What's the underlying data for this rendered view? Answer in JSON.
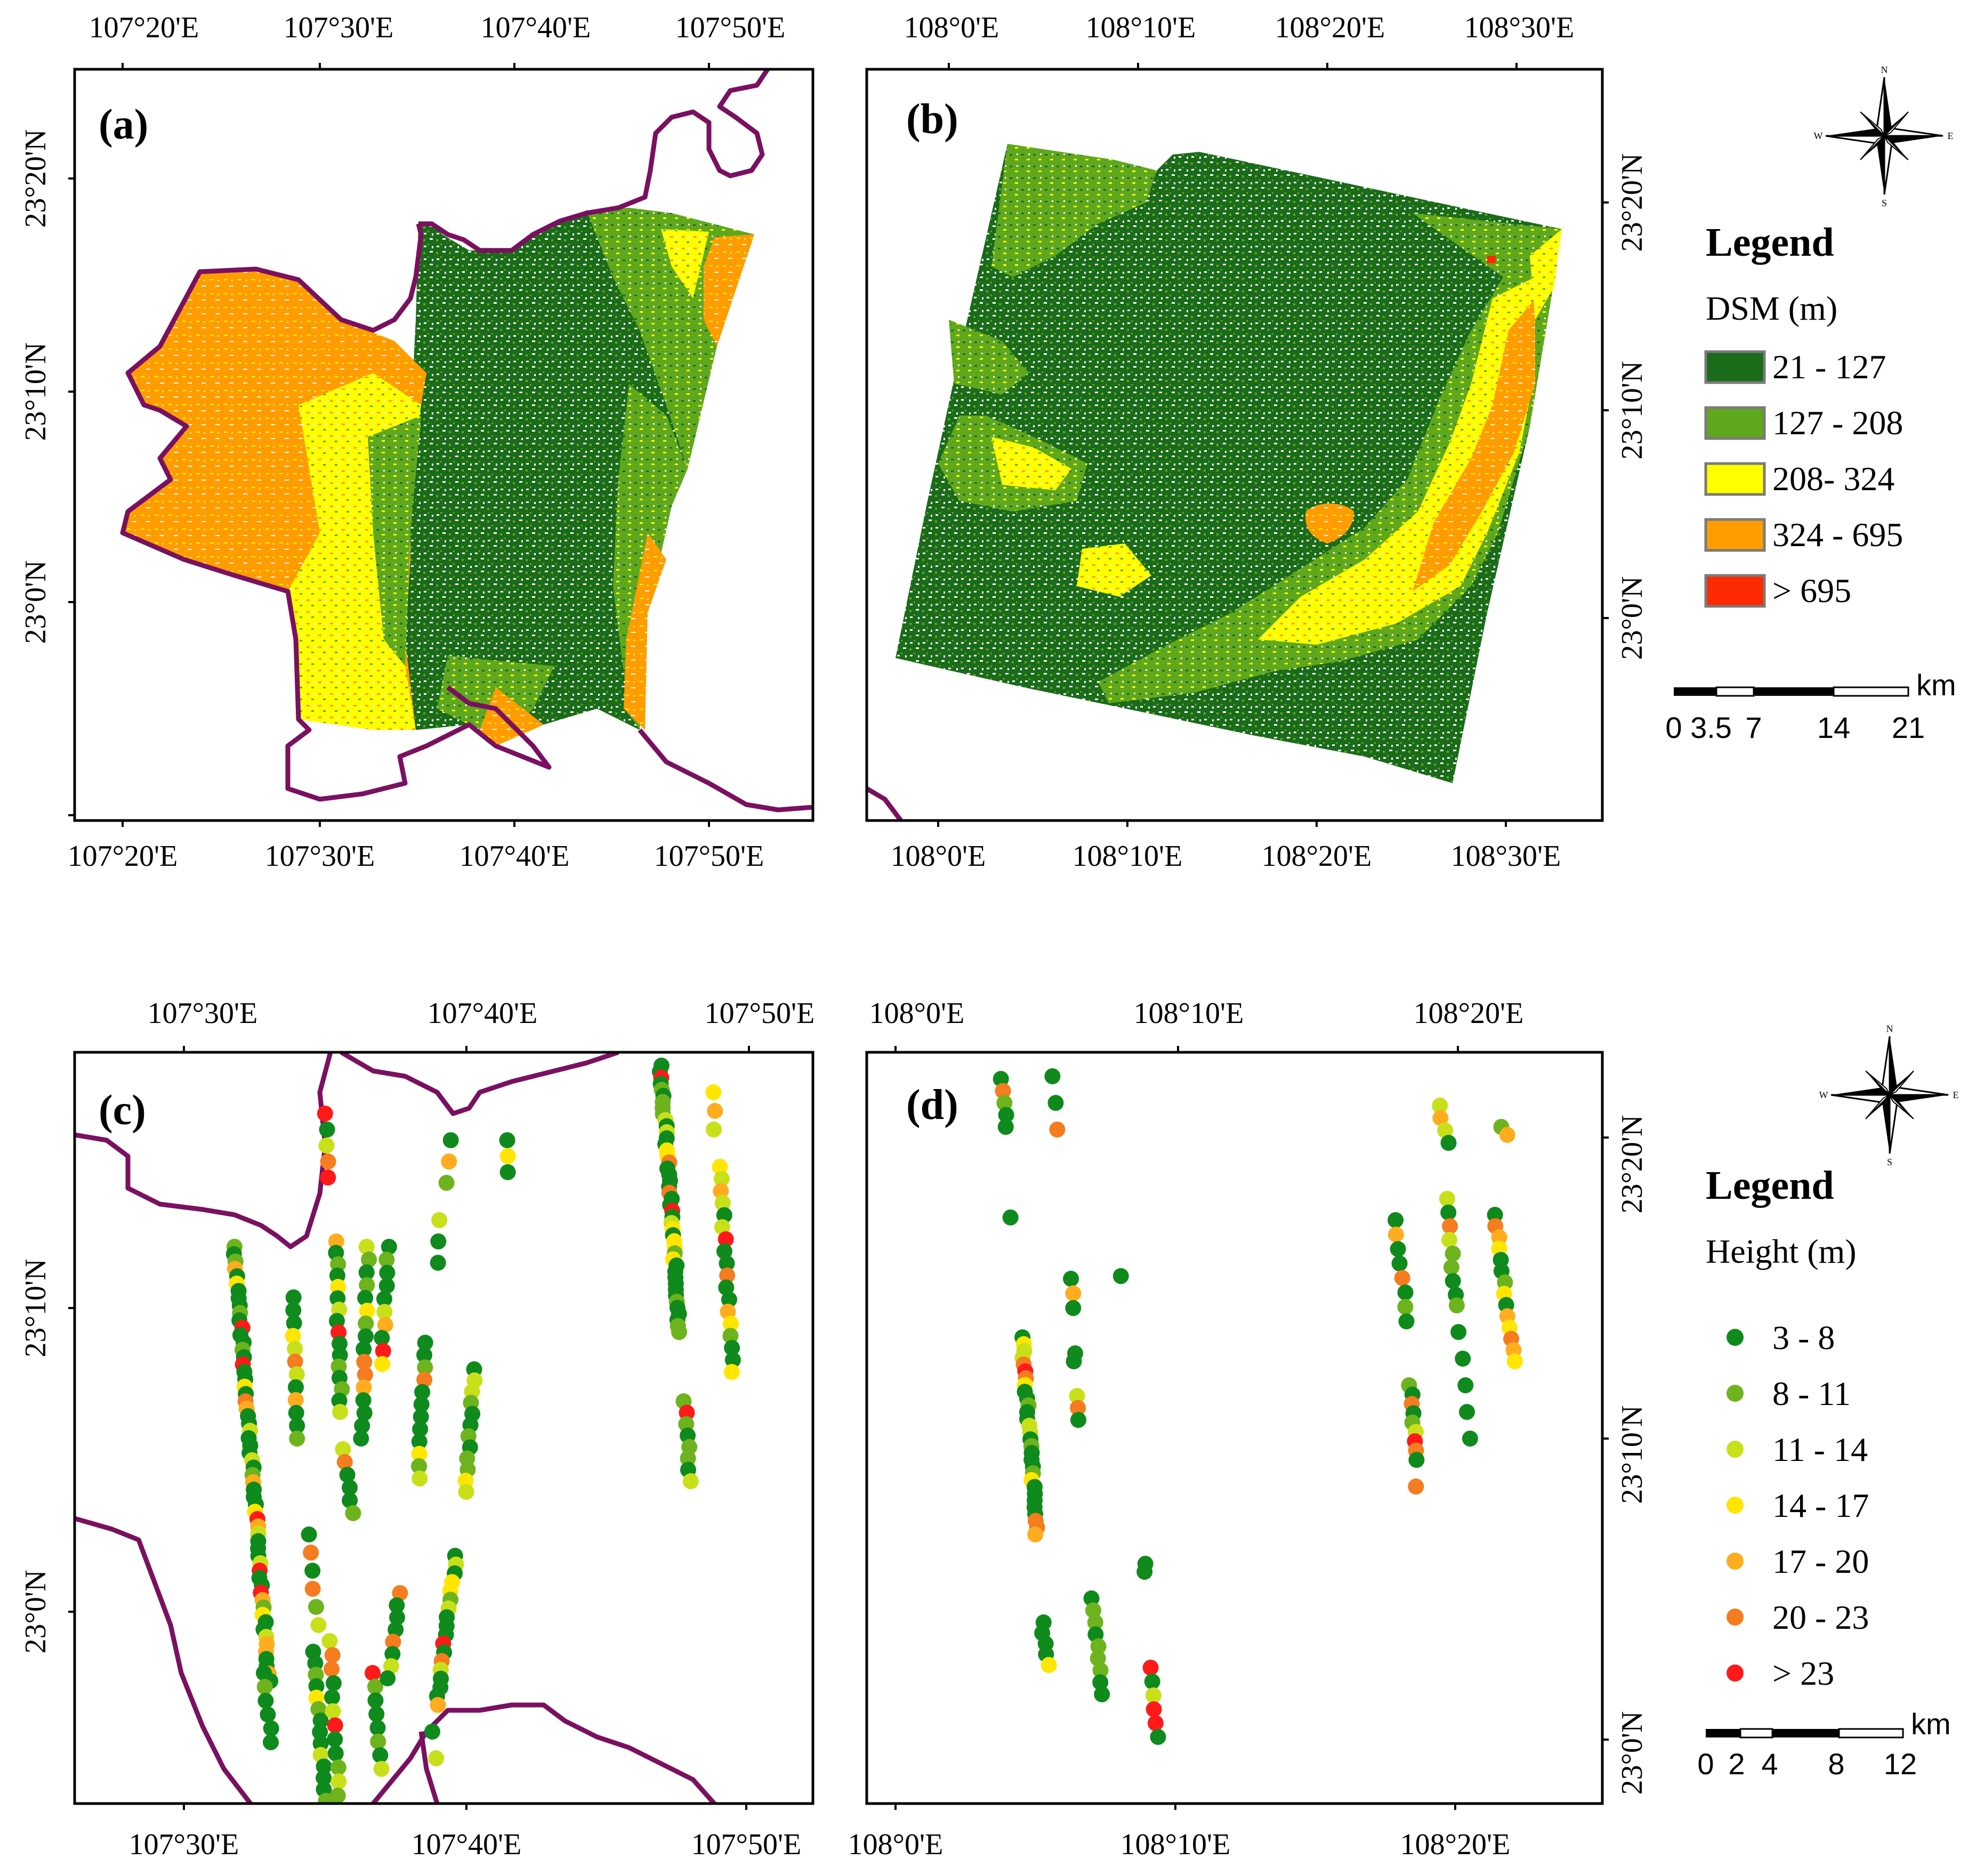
{
  "figure": {
    "panels": [
      {
        "id": "a",
        "label": "(a)",
        "top_ticks": [
          "107°20'E",
          "107°30'E",
          "107°40'E",
          "107°50'E"
        ],
        "bottom_ticks": [
          "107°20'E",
          "107°30'E",
          "107°40'E",
          "107°50'E"
        ],
        "left_ticks": [
          "23°20'N",
          "23°10'N",
          "23°0'N"
        ]
      },
      {
        "id": "b",
        "label": "(b)",
        "top_ticks": [
          "108°0'E",
          "108°10'E",
          "108°20'E",
          "108°30'E"
        ],
        "bottom_ticks": [
          "108°0'E",
          "108°10'E",
          "108°20'E",
          "108°30'E"
        ],
        "right_ticks": [
          "23°20'N",
          "23°10'N",
          "23°0'N"
        ]
      },
      {
        "id": "c",
        "label": "(c)",
        "top_ticks": [
          "107°30'E",
          "107°40'E",
          "107°50'E"
        ],
        "bottom_ticks": [
          "107°30'E",
          "107°40'E",
          "107°50'E"
        ],
        "left_ticks": [
          "23°10'N",
          "23°0'N"
        ]
      },
      {
        "id": "d",
        "label": "(d)",
        "top_ticks": [
          "108°0'E",
          "108°10'E",
          "108°20'E"
        ],
        "bottom_ticks": [
          "108°0'E",
          "108°10'E",
          "108°20'E"
        ],
        "right_ticks": [
          "23°20'N",
          "23°10'N",
          "23°0'N"
        ]
      }
    ],
    "legend_dsm": {
      "title": "Legend",
      "subtitle": "DSM (m)",
      "classes": [
        {
          "label": "21 - 127",
          "color": "#1a6b1a"
        },
        {
          "label": "127 - 208",
          "color": "#5fa81e"
        },
        {
          "label": "208- 324",
          "color": "#ffff00"
        },
        {
          "label": "324 - 695",
          "color": "#ff9d00"
        },
        {
          "label": "> 695",
          "color": "#ff2a00"
        }
      ],
      "scale_unit": "km",
      "scale_ticks": [
        "0",
        "3.5",
        "7",
        "14",
        "21"
      ]
    },
    "legend_height": {
      "title": "Legend",
      "subtitle": "Height (m)",
      "classes": [
        {
          "label": "3 - 8",
          "color": "#0f8a1c"
        },
        {
          "label": "8 - 11",
          "color": "#6db31e"
        },
        {
          "label": "11 - 14",
          "color": "#c8e01a"
        },
        {
          "label": "14 - 17",
          "color": "#ffe600"
        },
        {
          "label": "17 - 20",
          "color": "#ffad1f"
        },
        {
          "label": "20 - 23",
          "color": "#f57c1f"
        },
        {
          "label": "> 23",
          "color": "#ff1a1a"
        }
      ],
      "scale_unit": "km",
      "scale_ticks": [
        "0",
        "2",
        "4",
        "8",
        "12"
      ]
    },
    "compass": {
      "n": "N",
      "s": "S",
      "e": "E",
      "w": "W"
    },
    "colors": {
      "boundary": "#7a1060",
      "dark_green": "#1a6b1a",
      "light_green": "#5fa81e",
      "yellow": "#ffff00",
      "orange": "#ff9d00",
      "red": "#ff2a00"
    }
  }
}
